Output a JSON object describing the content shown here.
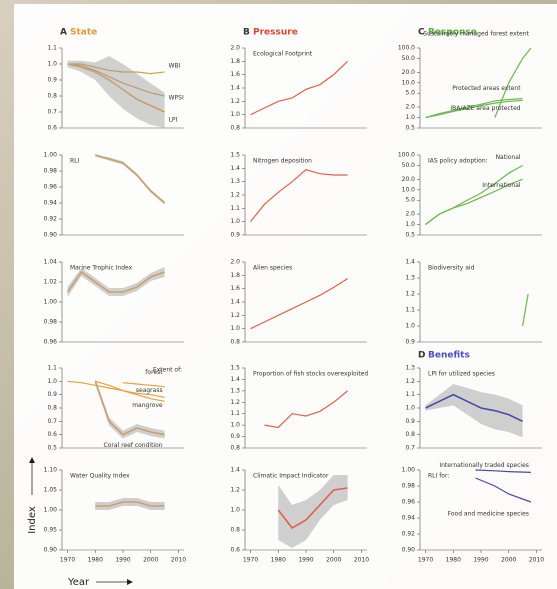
{
  "figure": {
    "headers": [
      {
        "letter": "A",
        "label": "State",
        "color": "#e09a3a"
      },
      {
        "letter": "B",
        "label": "Pressure",
        "color": "#d8442e"
      },
      {
        "letter": "C",
        "label": "Response",
        "color": "#5aae3c"
      },
      {
        "letter": "D",
        "label": "Benefits",
        "color": "#4c4cc0"
      }
    ],
    "y_label": "Index",
    "x_label": "Year"
  },
  "chart_data": [
    {
      "type": "line",
      "title": "",
      "xlim": [
        1968,
        2012
      ],
      "ylim": [
        0.6,
        1.1
      ],
      "yticks": [
        0.6,
        0.7,
        0.8,
        0.9,
        {
          "value": 1,
          "label": "1.0"
        },
        1.1
      ],
      "series": [
        {
          "name": "WBI",
          "color": "#d8a050",
          "x": [
            1970,
            1975,
            1980,
            1985,
            1990,
            1995,
            2000,
            2005
          ],
          "values": [
            1.0,
            1.0,
            0.98,
            0.96,
            0.95,
            0.95,
            0.94,
            0.95
          ]
        },
        {
          "name": "WPSI",
          "color": "#d8a050",
          "x": [
            1970,
            1975,
            1980,
            1985,
            1990,
            1995,
            2000,
            2005
          ],
          "values": [
            1.0,
            0.99,
            0.96,
            0.92,
            0.88,
            0.85,
            0.82,
            0.8
          ]
        },
        {
          "name": "LPI",
          "color": "#c8a070",
          "x": [
            1970,
            1975,
            1980,
            1985,
            1990,
            1995,
            2000,
            2005
          ],
          "values": [
            1.0,
            0.98,
            0.95,
            0.9,
            0.84,
            0.78,
            0.74,
            0.7
          ],
          "lower": [
            0.98,
            0.95,
            0.9,
            0.8,
            0.72,
            0.66,
            0.62,
            0.6
          ],
          "upper": [
            1.02,
            1.02,
            1.01,
            1.05,
            1.0,
            0.94,
            0.88,
            0.82
          ]
        }
      ]
    },
    {
      "type": "line",
      "title": "RLI",
      "xlim": [
        1968,
        2012
      ],
      "ylim": [
        0.9,
        1.0
      ],
      "yticks": [
        {
          "value": 0.9,
          "label": "0.90"
        },
        0.92,
        0.94,
        0.96,
        0.98,
        {
          "value": 1,
          "label": "1.00"
        }
      ],
      "series": [
        {
          "color": "#c8a070",
          "x": [
            1980,
            1985,
            1990,
            1995,
            2000,
            2005
          ],
          "values": [
            1.0,
            0.995,
            0.99,
            0.975,
            0.955,
            0.94
          ],
          "lower": [
            0.998,
            0.993,
            0.988,
            0.973,
            0.953,
            0.938
          ],
          "upper": [
            1.0,
            0.997,
            0.992,
            0.977,
            0.957,
            0.942
          ]
        }
      ]
    },
    {
      "type": "line",
      "title": "Marine Trophic Index",
      "xlim": [
        1968,
        2012
      ],
      "ylim": [
        0.96,
        1.04
      ],
      "yticks": [
        0.96,
        0.98,
        {
          "value": 1,
          "label": "1.00"
        },
        1.02,
        1.04
      ],
      "series": [
        {
          "color": "#c8a070",
          "x": [
            1970,
            1975,
            1980,
            1985,
            1990,
            1995,
            2000,
            2005
          ],
          "values": [
            1.01,
            1.03,
            1.02,
            1.01,
            1.01,
            1.015,
            1.025,
            1.03
          ],
          "lower": [
            1.005,
            1.026,
            1.016,
            1.006,
            1.006,
            1.011,
            1.021,
            1.025
          ],
          "upper": [
            1.015,
            1.034,
            1.024,
            1.014,
            1.014,
            1.019,
            1.029,
            1.035
          ]
        }
      ]
    },
    {
      "type": "line",
      "title": "",
      "annotation": "Extent of:",
      "xlim": [
        1968,
        2012
      ],
      "ylim": [
        0.5,
        1.1
      ],
      "yticks": [
        0.5,
        0.6,
        0.7,
        0.8,
        0.9,
        {
          "value": 1,
          "label": "1.0"
        },
        1.1
      ],
      "series": [
        {
          "name": "forest",
          "color": "#e8a040",
          "x": [
            1990,
            1995,
            2000,
            2005
          ],
          "values": [
            0.99,
            0.98,
            0.97,
            0.96
          ]
        },
        {
          "name": "seagrass",
          "color": "#e8a040",
          "x": [
            1970,
            1975,
            1980,
            1985,
            1990,
            1995,
            2000,
            2005
          ],
          "values": [
            1.0,
            0.99,
            0.97,
            0.95,
            0.93,
            0.91,
            0.9,
            0.88
          ]
        },
        {
          "name": "mangrove",
          "color": "#e8a040",
          "x": [
            1980,
            1985,
            1990,
            1995,
            2000,
            2005
          ],
          "values": [
            1.0,
            0.97,
            0.93,
            0.9,
            0.87,
            0.85
          ]
        },
        {
          "name": "Coral reef condition",
          "color": "#c8a070",
          "x": [
            1980,
            1985,
            1990,
            1995,
            2000,
            2005
          ],
          "values": [
            1.0,
            0.7,
            0.6,
            0.65,
            0.62,
            0.6
          ],
          "lower": [
            0.98,
            0.67,
            0.57,
            0.62,
            0.59,
            0.57
          ],
          "upper": [
            1.02,
            0.73,
            0.63,
            0.68,
            0.65,
            0.63
          ]
        }
      ]
    },
    {
      "type": "line",
      "title": "Water Quality Index",
      "xlim": [
        1968,
        2012
      ],
      "xticks": [
        1970,
        1980,
        1990,
        2000,
        2010
      ],
      "ylim": [
        0.9,
        1.1
      ],
      "yticks": [
        {
          "value": 0.9,
          "label": "0.90"
        },
        0.95,
        {
          "value": 1,
          "label": "1.00"
        },
        1.05,
        {
          "value": 1.1,
          "label": "1.10"
        }
      ],
      "series": [
        {
          "color": "#c8a070",
          "x": [
            1980,
            1985,
            1990,
            1995,
            2000,
            2005
          ],
          "values": [
            1.01,
            1.01,
            1.02,
            1.02,
            1.01,
            1.01
          ],
          "lower": [
            1.0,
            1.0,
            1.01,
            1.01,
            1.0,
            1.0
          ],
          "upper": [
            1.02,
            1.02,
            1.03,
            1.03,
            1.02,
            1.02
          ]
        }
      ]
    },
    {
      "type": "line",
      "title": "Ecological Footprint",
      "xlim": [
        1968,
        2012
      ],
      "ylim": [
        0.8,
        2.0
      ],
      "yticks": [
        0.8,
        {
          "value": 1,
          "label": "1.0"
        },
        1.2,
        1.4,
        1.6,
        1.8,
        {
          "value": 2,
          "label": "2.0"
        }
      ],
      "series": [
        {
          "color": "#e0604a",
          "x": [
            1970,
            1975,
            1980,
            1985,
            1990,
            1995,
            2000,
            2005
          ],
          "values": [
            1.0,
            1.1,
            1.2,
            1.25,
            1.38,
            1.45,
            1.6,
            1.8
          ]
        }
      ]
    },
    {
      "type": "line",
      "title": "Nitrogen deposition",
      "xlim": [
        1968,
        2012
      ],
      "ylim": [
        0.9,
        1.5
      ],
      "yticks": [
        0.9,
        {
          "value": 1,
          "label": "1.0"
        },
        1.1,
        1.2,
        1.3,
        1.4,
        1.5
      ],
      "series": [
        {
          "color": "#e0604a",
          "x": [
            1970,
            1975,
            1980,
            1985,
            1990,
            1995,
            2000,
            2005
          ],
          "values": [
            1.0,
            1.13,
            1.22,
            1.3,
            1.39,
            1.36,
            1.35,
            1.35
          ]
        }
      ]
    },
    {
      "type": "line",
      "title": "Alien species",
      "xlim": [
        1968,
        2012
      ],
      "ylim": [
        0.8,
        2.0
      ],
      "yticks": [
        0.8,
        {
          "value": 1,
          "label": "1.0"
        },
        1.2,
        1.4,
        1.6,
        1.8,
        {
          "value": 2,
          "label": "2.0"
        }
      ],
      "series": [
        {
          "color": "#e0604a",
          "x": [
            1970,
            1975,
            1980,
            1985,
            1990,
            1995,
            2000,
            2005
          ],
          "values": [
            1.0,
            1.1,
            1.2,
            1.3,
            1.4,
            1.5,
            1.62,
            1.75
          ]
        }
      ]
    },
    {
      "type": "line",
      "title": "Proportion of fish stocks overexploited",
      "xlim": [
        1968,
        2012
      ],
      "ylim": [
        0.8,
        1.5
      ],
      "yticks": [
        0.8,
        0.9,
        {
          "value": 1,
          "label": "1.0"
        },
        1.1,
        1.2,
        1.3,
        1.4,
        1.5
      ],
      "series": [
        {
          "color": "#e0604a",
          "x": [
            1975,
            1980,
            1985,
            1990,
            1995,
            2000,
            2005
          ],
          "values": [
            1.0,
            0.98,
            1.1,
            1.08,
            1.12,
            1.2,
            1.3
          ]
        }
      ]
    },
    {
      "type": "line",
      "title": "Climatic Impact Indicator",
      "xlim": [
        1968,
        2012
      ],
      "xticks": [
        1970,
        1980,
        1990,
        2000,
        2010
      ],
      "ylim": [
        0.6,
        1.4
      ],
      "yticks": [
        0.6,
        0.8,
        {
          "value": 1,
          "label": "1.0"
        },
        1.2,
        1.4
      ],
      "series": [
        {
          "color": "#e0604a",
          "x": [
            1980,
            1985,
            1990,
            1995,
            2000,
            2005
          ],
          "values": [
            1.0,
            0.82,
            0.9,
            1.05,
            1.2,
            1.22
          ],
          "lower": [
            0.7,
            0.62,
            0.7,
            0.9,
            1.05,
            1.1
          ],
          "upper": [
            1.25,
            1.05,
            1.1,
            1.2,
            1.35,
            1.35
          ]
        }
      ]
    },
    {
      "type": "line",
      "log": true,
      "title": "",
      "xlim": [
        1968,
        2012
      ],
      "ylim": [
        0.5,
        100
      ],
      "yticks": [
        0.5,
        {
          "value": 1,
          "label": "1.0"
        },
        {
          "value": 2,
          "label": "2.0"
        },
        {
          "value": 5,
          "label": "5.0"
        },
        {
          "value": 10,
          "label": "10.0"
        },
        {
          "value": 20,
          "label": "20.0"
        },
        {
          "value": 50,
          "label": "50.0"
        },
        {
          "value": 100,
          "label": "100.0"
        }
      ],
      "series": [
        {
          "name": "Sustainably managed forest extent",
          "color": "#6cb84a",
          "x": [
            1995,
            2000,
            2005,
            2008
          ],
          "values": [
            1,
            10,
            50,
            100
          ]
        },
        {
          "name": "Protected areas extent",
          "color": "#6cb84a",
          "x": [
            1970,
            1975,
            1980,
            1985,
            1990,
            1995,
            2000,
            2005
          ],
          "values": [
            1,
            1.3,
            1.6,
            2,
            2.4,
            3,
            3.3,
            3.5
          ]
        },
        {
          "name": "IBA/AZE area protected",
          "color": "#6cb84a",
          "x": [
            1970,
            1975,
            1980,
            1985,
            1990,
            1995,
            2000,
            2005
          ],
          "values": [
            1,
            1.2,
            1.5,
            1.8,
            2.2,
            2.6,
            2.9,
            3.1
          ]
        }
      ]
    },
    {
      "type": "line",
      "log": true,
      "title": "IAS policy adoption:",
      "xlim": [
        1968,
        2012
      ],
      "ylim": [
        0.5,
        100
      ],
      "yticks": [
        0.5,
        {
          "value": 1,
          "label": "1.0"
        },
        {
          "value": 2,
          "label": "2.0"
        },
        {
          "value": 5,
          "label": "5.0"
        },
        {
          "value": 10,
          "label": "10.0"
        },
        {
          "value": 20,
          "label": "20.0"
        },
        {
          "value": 50,
          "label": "50.0"
        },
        {
          "value": 100,
          "label": "100.0"
        }
      ],
      "series": [
        {
          "name": "National",
          "color": "#6cb84a",
          "x": [
            1970,
            1975,
            1980,
            1985,
            1990,
            1995,
            2000,
            2005
          ],
          "values": [
            1,
            2,
            3,
            5,
            8,
            15,
            30,
            50
          ]
        },
        {
          "name": "International",
          "color": "#6cb84a",
          "x": [
            1970,
            1975,
            1980,
            1985,
            1990,
            1995,
            2000,
            2005
          ],
          "values": [
            1,
            2,
            3,
            4,
            6,
            9,
            14,
            20
          ]
        }
      ]
    },
    {
      "type": "line",
      "title": "Biodiversity aid",
      "xlim": [
        1968,
        2012
      ],
      "ylim": [
        0.9,
        1.4
      ],
      "yticks": [
        0.9,
        {
          "value": 1,
          "label": "1.0"
        },
        1.1,
        1.2,
        1.3,
        1.4
      ],
      "series": [
        {
          "color": "#6cb84a",
          "x": [
            2005,
            2007
          ],
          "values": [
            1.0,
            1.2
          ]
        }
      ]
    },
    {
      "type": "line",
      "title": "LPI for utilized species",
      "xlim": [
        1968,
        2012
      ],
      "ylim": [
        0.7,
        1.3
      ],
      "yticks": [
        0.7,
        0.8,
        0.9,
        {
          "value": 1,
          "label": "1.0"
        },
        1.1,
        1.2,
        1.3
      ],
      "series": [
        {
          "color": "#4a4aa8",
          "x": [
            1970,
            1975,
            1980,
            1985,
            1990,
            1995,
            2000,
            2005
          ],
          "values": [
            1.0,
            1.05,
            1.1,
            1.05,
            1.0,
            0.98,
            0.95,
            0.9
          ],
          "lower": [
            0.98,
            1.0,
            1.02,
            0.95,
            0.88,
            0.84,
            0.82,
            0.78
          ],
          "upper": [
            1.02,
            1.1,
            1.18,
            1.15,
            1.12,
            1.1,
            1.07,
            1.02
          ]
        }
      ]
    },
    {
      "type": "line",
      "title": "RLI for:",
      "xlim": [
        1968,
        2012
      ],
      "xticks": [
        1970,
        1980,
        1990,
        2000,
        2010
      ],
      "ylim": [
        0.9,
        1.0
      ],
      "yticks": [
        {
          "value": 0.9,
          "label": "0.90"
        },
        0.92,
        0.94,
        0.96,
        0.98,
        {
          "value": 1,
          "label": "1.00"
        }
      ],
      "series": [
        {
          "name": "Internationally traded species",
          "color": "#4a4aa8",
          "x": [
            1988,
            1995,
            2000,
            2008
          ],
          "values": [
            1.0,
            0.999,
            0.998,
            0.997
          ]
        },
        {
          "name": "Food and medicine species",
          "color": "#4a4aa8",
          "x": [
            1988,
            1995,
            2000,
            2008
          ],
          "values": [
            0.99,
            0.98,
            0.97,
            0.96
          ]
        }
      ]
    }
  ]
}
